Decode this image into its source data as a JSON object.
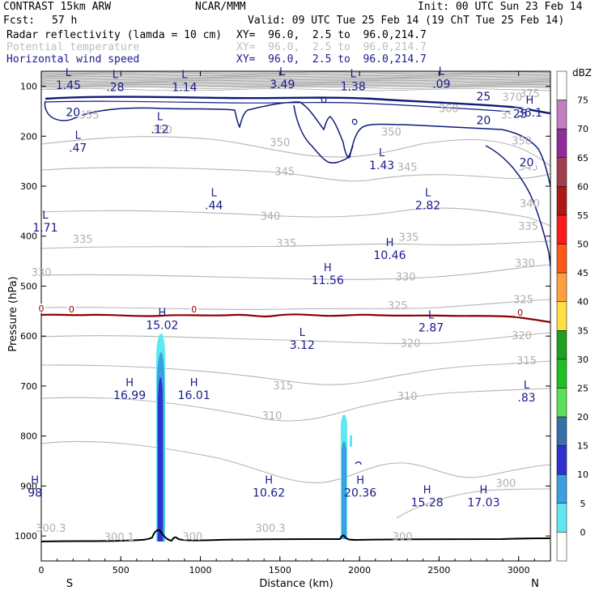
{
  "header": {
    "model": "CONTRAST 15km ARW",
    "agency": "NCAR/MMM",
    "init": "Init: 00 UTC Sun 23 Feb 14",
    "fcst_label": "Fcst:",
    "fcst_value": "57 h",
    "valid": "Valid: 09 UTC Tue 25 Feb 14 (19 ChT Tue 25 Feb 14)",
    "fields": [
      {
        "name": "Radar reflectivity (lamda = 10 cm)",
        "xy": "XY=  96.0,  2.5 to  96.0,214.7",
        "color": "#000000"
      },
      {
        "name": "Potential temperature",
        "xy": "XY=  96.0,  2.5 to  96.0,214.7",
        "color": "#bdbdbd"
      },
      {
        "name": "Horizontal wind speed",
        "xy": "XY=  96.0,  2.5 to  96.0,214.7",
        "color": "#1a1a8c"
      }
    ]
  },
  "axes": {
    "ylabel": "Pressure (hPa)",
    "xlabel": "Distance (km)",
    "left_end": "S",
    "right_end": "N"
  },
  "colorbar": {
    "unit": "dBZ",
    "levels": [
      "75",
      "70",
      "65",
      "60",
      "55",
      "50",
      "45",
      "40",
      "35",
      "30",
      "25",
      "20",
      "15",
      "10",
      "5",
      "0"
    ],
    "colors": [
      "#ffffff",
      "#c080c0",
      "#902c9a",
      "#a04050",
      "#b01818",
      "#ff1a1a",
      "#ff5a1a",
      "#ffa040",
      "#ffe040",
      "#20a020",
      "#20c020",
      "#5ae05a",
      "#3a70a8",
      "#3030d0",
      "#3aa0e0",
      "#60e8f0",
      "#ffffff"
    ]
  },
  "chart_data": {
    "type": "contour-cross-section",
    "title": "CONTRAST 15km ARW",
    "xlabel": "Distance (km)",
    "ylabel": "Pressure (hPa)",
    "xlim": [
      0,
      3200
    ],
    "ylim": [
      1050,
      70
    ],
    "x_ticks": [
      0,
      500,
      1000,
      1500,
      2000,
      2500,
      3000
    ],
    "y_ticks": [
      100,
      200,
      300,
      400,
      500,
      600,
      700,
      800,
      900,
      1000
    ],
    "theta_labels": [
      {
        "x": 3070,
        "p": 115,
        "text": "375"
      },
      {
        "x": 2960,
        "p": 123,
        "text": "370"
      },
      {
        "x": 2560,
        "p": 145,
        "text": "360"
      },
      {
        "x": 300,
        "p": 158,
        "text": "355"
      },
      {
        "x": 2950,
        "p": 158,
        "text": "355"
      },
      {
        "x": 760,
        "p": 188,
        "text": "350"
      },
      {
        "x": 1500,
        "p": 213,
        "text": "350"
      },
      {
        "x": 2200,
        "p": 192,
        "text": "350"
      },
      {
        "x": 3020,
        "p": 210,
        "text": "350"
      },
      {
        "x": 1530,
        "p": 272,
        "text": "345"
      },
      {
        "x": 2300,
        "p": 263,
        "text": "345"
      },
      {
        "x": 3060,
        "p": 262,
        "text": "345"
      },
      {
        "x": 1440,
        "p": 361,
        "text": "340"
      },
      {
        "x": 3070,
        "p": 336,
        "text": "340"
      },
      {
        "x": 260,
        "p": 407,
        "text": "335"
      },
      {
        "x": 1540,
        "p": 415,
        "text": "335"
      },
      {
        "x": 2310,
        "p": 403,
        "text": "335"
      },
      {
        "x": 3060,
        "p": 381,
        "text": "335"
      },
      {
        "x": 0,
        "p": 473,
        "text": "330"
      },
      {
        "x": 2290,
        "p": 482,
        "text": "330"
      },
      {
        "x": 3040,
        "p": 455,
        "text": "330"
      },
      {
        "x": 2240,
        "p": 540,
        "text": "325"
      },
      {
        "x": 3030,
        "p": 528,
        "text": "325"
      },
      {
        "x": 3020,
        "p": 600,
        "text": "320"
      },
      {
        "x": 2320,
        "p": 615,
        "text": "320"
      },
      {
        "x": 3050,
        "p": 650,
        "text": "315"
      },
      {
        "x": 1520,
        "p": 700,
        "text": "315"
      },
      {
        "x": 2300,
        "p": 721,
        "text": "310"
      },
      {
        "x": 1450,
        "p": 760,
        "text": "310"
      },
      {
        "x": 2920,
        "p": 895,
        "text": "300"
      },
      {
        "x": 60,
        "p": 985,
        "text": "300.3"
      },
      {
        "x": 490,
        "p": 1003,
        "text": "300.1"
      },
      {
        "x": 950,
        "p": 1002,
        "text": "300"
      },
      {
        "x": 1440,
        "p": 985,
        "text": "300.3"
      },
      {
        "x": 2270,
        "p": 1002,
        "text": "300"
      }
    ],
    "wind_labels": [
      {
        "x": 200,
        "p": 152,
        "text": "20"
      },
      {
        "x": 2780,
        "p": 120,
        "text": "25"
      },
      {
        "x": 2780,
        "p": 168,
        "text": "20"
      },
      {
        "x": 3010,
        "p": 155,
        "text": "25"
      },
      {
        "x": 3050,
        "p": 252,
        "text": "20"
      }
    ],
    "zero_isotherm": [
      {
        "x": 0,
        "p": 545,
        "text": "0"
      },
      {
        "x": 190,
        "p": 546,
        "text": "0"
      },
      {
        "x": 960,
        "p": 546,
        "text": "0"
      },
      {
        "x": 3010,
        "p": 553,
        "text": "0"
      }
    ],
    "extrema": [
      {
        "type": "L",
        "x": 170,
        "p": 80,
        "value": "1.45"
      },
      {
        "type": "L",
        "x": 465,
        "p": 84,
        "value": ".28"
      },
      {
        "type": "L",
        "x": 900,
        "p": 84,
        "value": "1.14"
      },
      {
        "type": "L",
        "x": 1515,
        "p": 78,
        "value": "3.49"
      },
      {
        "type": "L",
        "x": 1960,
        "p": 82,
        "value": "1.38"
      },
      {
        "type": "L",
        "x": 2515,
        "p": 77,
        "value": ".09"
      },
      {
        "type": "H",
        "x": 3070,
        "p": 135,
        "value": "36.1"
      },
      {
        "type": "L",
        "x": 745,
        "p": 168,
        "value": ".12"
      },
      {
        "type": "L",
        "x": 230,
        "p": 205,
        "value": ".47"
      },
      {
        "type": "L",
        "x": 1085,
        "p": 320,
        "value": ".44"
      },
      {
        "type": "L",
        "x": 2140,
        "p": 240,
        "value": "1.43"
      },
      {
        "type": "L",
        "x": 2430,
        "p": 320,
        "value": "2.82"
      },
      {
        "type": "L",
        "x": 25,
        "p": 365,
        "value": "1.71"
      },
      {
        "type": "H",
        "x": 2190,
        "p": 420,
        "value": "10.46"
      },
      {
        "type": "H",
        "x": 1800,
        "p": 470,
        "value": "11.56"
      },
      {
        "type": "H",
        "x": 760,
        "p": 560,
        "value": "15.02"
      },
      {
        "type": "L",
        "x": 2450,
        "p": 565,
        "value": "2.87"
      },
      {
        "type": "L",
        "x": 1640,
        "p": 600,
        "value": "3.12"
      },
      {
        "type": "H",
        "x": 555,
        "p": 700,
        "value": "16.99"
      },
      {
        "type": "H",
        "x": 960,
        "p": 700,
        "value": "16.01"
      },
      {
        "type": "L",
        "x": 3050,
        "p": 705,
        "value": ".83"
      },
      {
        "type": "H",
        "x": 1430,
        "p": 895,
        "value": "10.62"
      },
      {
        "type": "H",
        "x": 2005,
        "p": 895,
        "value": "20.36"
      },
      {
        "type": "H",
        "x": 2425,
        "p": 915,
        "value": "15.28"
      },
      {
        "type": "H",
        "x": 2780,
        "p": 915,
        "value": "17.03"
      },
      {
        "type": "H",
        "x": -40,
        "p": 895,
        "value": "98"
      }
    ]
  }
}
